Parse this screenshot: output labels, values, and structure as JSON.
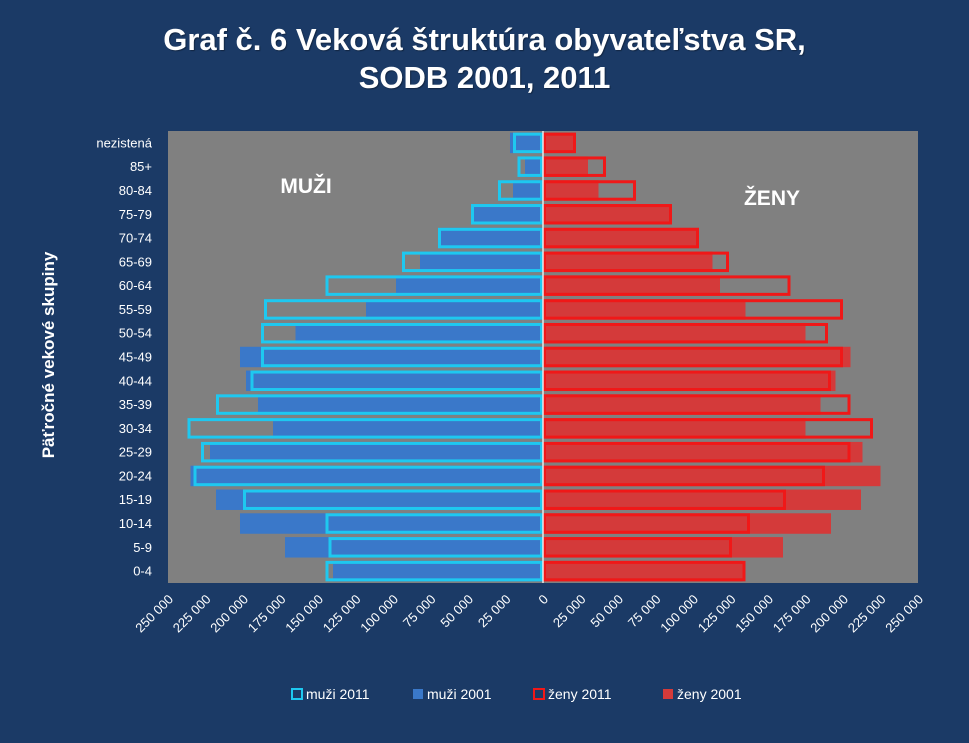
{
  "title_lines": [
    "Graf č. 6 Veková štruktúra obyvateľstva  SR,",
    "SODB  2001, 2011"
  ],
  "colors": {
    "background": "#1b3a66",
    "plot_area": "#808080",
    "men_2011": "#1ec8f0",
    "men_2001": "#3a78c9",
    "women_2011": "#f01818",
    "women_2001": "#d43a3a"
  },
  "chart_data": {
    "type": "bar",
    "orientation": "horizontal",
    "title": "Graf č. 6 Veková štruktúra obyvateľstva  SR, SODB  2001, 2011",
    "ylabel": "Päťročné vekové skupiny",
    "xlabel": "",
    "categories": [
      "0-4",
      "5-9",
      "10-14",
      "15-19",
      "20-24",
      "25-29",
      "30-34",
      "35-39",
      "40-44",
      "45-49",
      "50-54",
      "55-59",
      "60-64",
      "65-69",
      "70-74",
      "75-79",
      "80-84",
      "85+",
      "nezistená"
    ],
    "xlim": [
      -250000,
      250000
    ],
    "x_tick_values": [
      -250000,
      -225000,
      -200000,
      -175000,
      -150000,
      -125000,
      -100000,
      -75000,
      -50000,
      -25000,
      0,
      25000,
      50000,
      75000,
      100000,
      125000,
      150000,
      175000,
      200000,
      225000,
      250000
    ],
    "x_tick_labels": [
      "250 000",
      "225 000",
      "200 000",
      "175 000",
      "150 000",
      "125 000",
      "100 000",
      "75 000",
      "50 000",
      "25 000",
      "0",
      "25 000",
      "50 000",
      "75 000",
      "100 000",
      "125 000",
      "150 000",
      "175 000",
      "200 000",
      "225 000",
      "250 000"
    ],
    "series": [
      {
        "name": "muži 2011",
        "side": "left",
        "style": "outline",
        "values": [
          145000,
          143000,
          145000,
          200000,
          233000,
          228000,
          237000,
          218000,
          195000,
          188000,
          188000,
          186000,
          145000,
          94000,
          70000,
          48000,
          30000,
          17000,
          20000
        ]
      },
      {
        "name": "muži 2001",
        "side": "left",
        "style": "filled",
        "values": [
          140000,
          172000,
          202000,
          218000,
          235000,
          222000,
          180000,
          190000,
          198000,
          202000,
          165000,
          118000,
          98000,
          82000,
          68000,
          48000,
          20000,
          12000,
          22000
        ]
      },
      {
        "name": "ženy 2011",
        "side": "right",
        "style": "outline",
        "values": [
          135000,
          126000,
          138000,
          162000,
          188000,
          205000,
          220000,
          205000,
          192000,
          200000,
          190000,
          200000,
          165000,
          124000,
          104000,
          86000,
          62000,
          42000,
          22000
        ]
      },
      {
        "name": "ženy 2001",
        "side": "right",
        "style": "filled",
        "values": [
          133000,
          160000,
          192000,
          212000,
          225000,
          213000,
          175000,
          185000,
          195000,
          205000,
          175000,
          135000,
          118000,
          113000,
          104000,
          86000,
          37000,
          30000,
          22000
        ]
      }
    ],
    "annotations": [
      "MUŽI",
      "ŽENY"
    ],
    "legend_position": "bottom",
    "grid": false
  }
}
